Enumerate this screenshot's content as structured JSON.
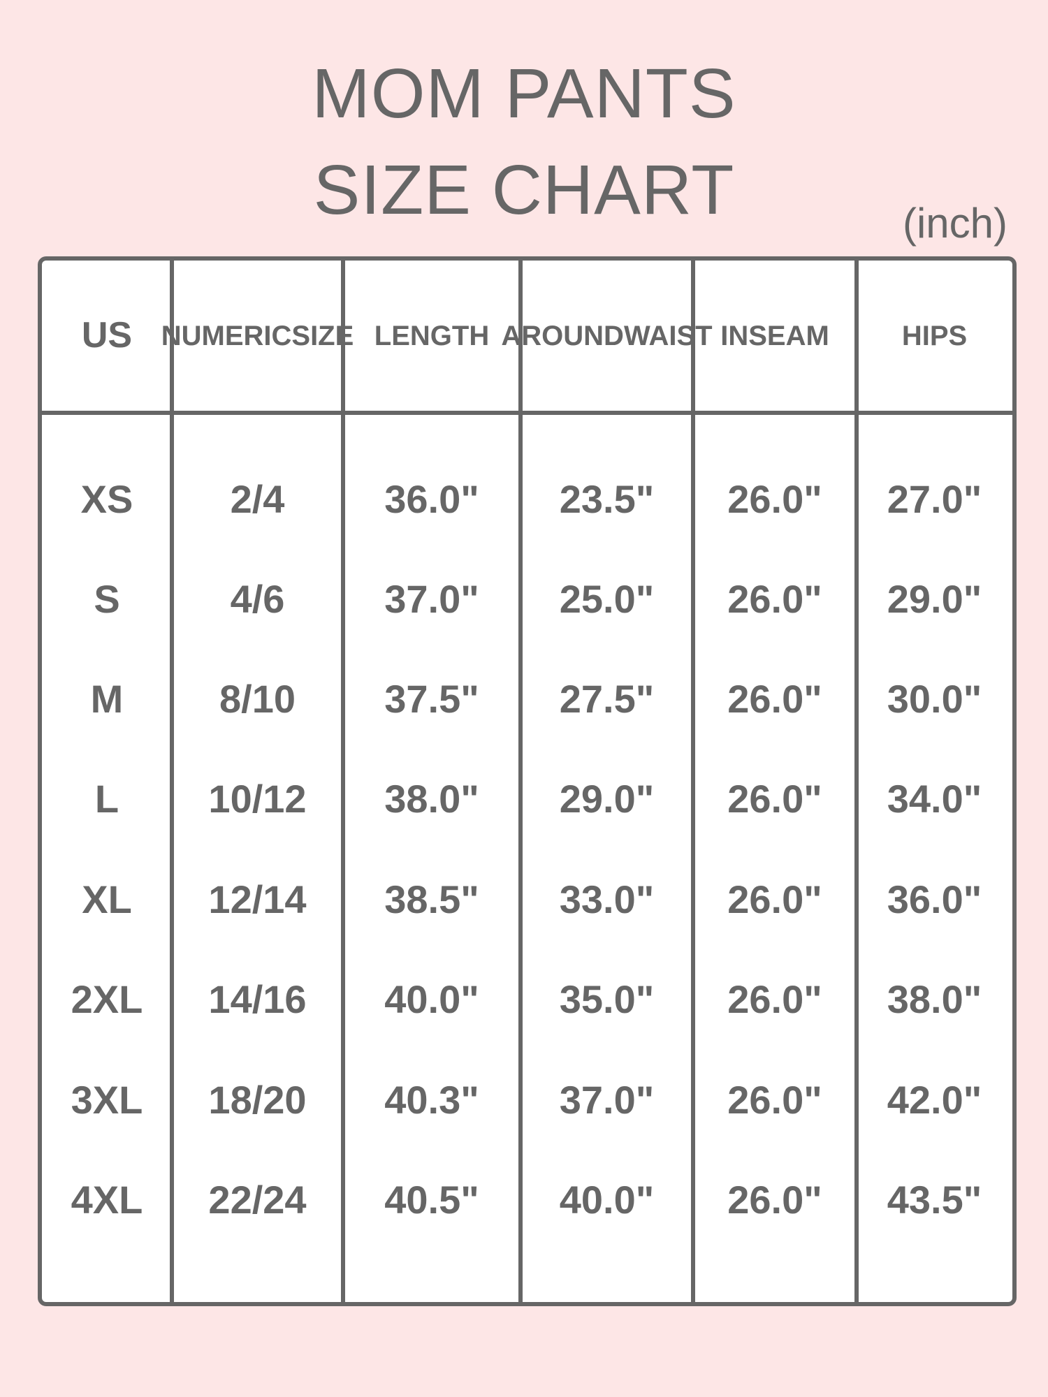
{
  "title_line1": "MOM PANTS",
  "title_line2": "SIZE CHART",
  "unit": "(inch)",
  "colors": {
    "background": "#fde6e6",
    "text": "#666666",
    "border": "#666666",
    "table_fill": "#ffffff"
  },
  "table": {
    "headers": [
      [
        "US"
      ],
      [
        "NUMERIC",
        "SIZE"
      ],
      [
        "LENGTH"
      ],
      [
        "AROUND",
        "WAIST"
      ],
      [
        "INSEAM"
      ],
      [
        "HIPS"
      ]
    ],
    "rows": [
      [
        "XS",
        "2/4",
        "36.0\"",
        "23.5\"",
        "26.0\"",
        "27.0\""
      ],
      [
        "S",
        "4/6",
        "37.0\"",
        "25.0\"",
        "26.0\"",
        "29.0\""
      ],
      [
        "M",
        "8/10",
        "37.5\"",
        "27.5\"",
        "26.0\"",
        "30.0\""
      ],
      [
        "L",
        "10/12",
        "38.0\"",
        "29.0\"",
        "26.0\"",
        "34.0\""
      ],
      [
        "XL",
        "12/14",
        "38.5\"",
        "33.0\"",
        "26.0\"",
        "36.0\""
      ],
      [
        "2XL",
        "14/16",
        "40.0\"",
        "35.0\"",
        "26.0\"",
        "38.0\""
      ],
      [
        "3XL",
        "18/20",
        "40.3\"",
        "37.0\"",
        "26.0\"",
        "42.0\""
      ],
      [
        "4XL",
        "22/24",
        "40.5\"",
        "40.0\"",
        "26.0\"",
        "43.5\""
      ]
    ]
  }
}
